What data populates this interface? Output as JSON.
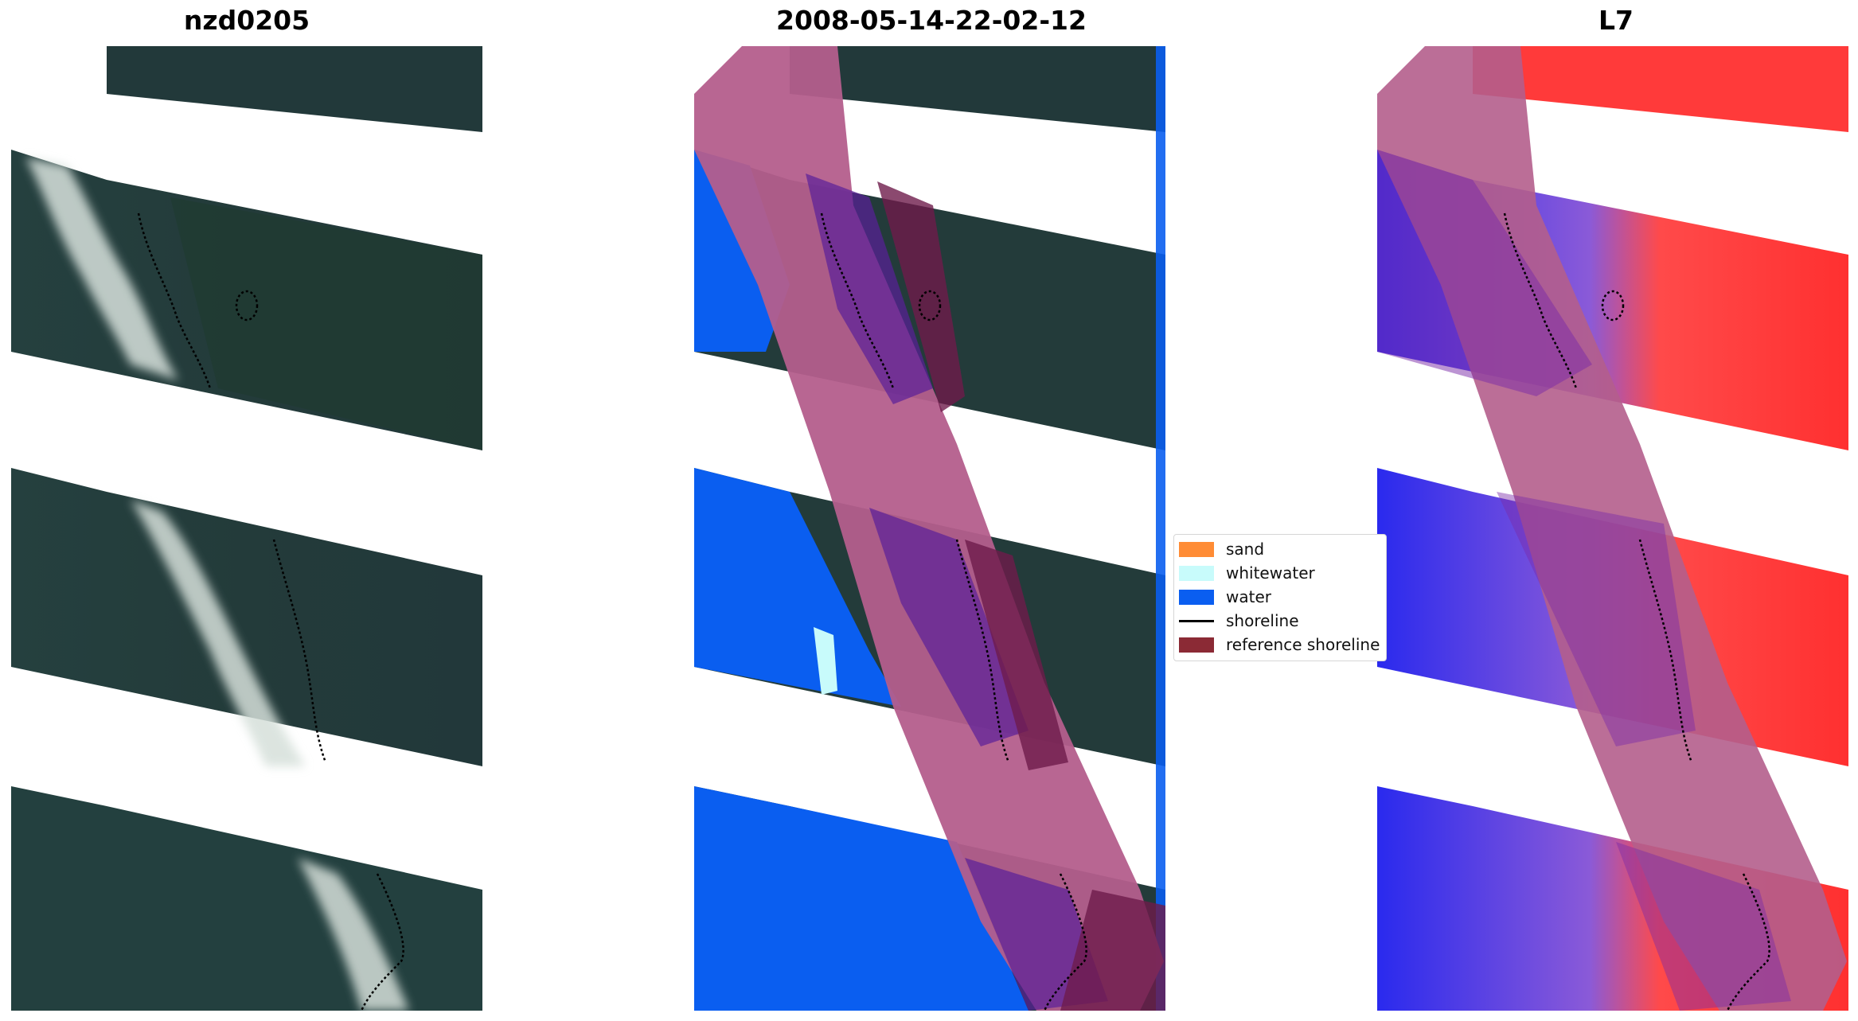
{
  "panels": [
    {
      "title": "nzd0205",
      "content": "RGB satellite image"
    },
    {
      "title": "2008-05-14-22-02-12",
      "content": "classified image"
    },
    {
      "title": "L7",
      "content": "water index image"
    }
  ],
  "legend": {
    "items": [
      {
        "label": "sand",
        "color": "#ff8c35"
      },
      {
        "label": "whitewater",
        "color": "#c8fbfb"
      },
      {
        "label": "water",
        "color": "#0a5ef0"
      },
      {
        "label": "shoreline",
        "color": "#000000"
      },
      {
        "label": "reference shoreline",
        "color": "#8b2a35"
      }
    ]
  },
  "colors": {
    "land_dark": "#1f3635",
    "vegetation": "#2b4838",
    "surf_white": "#d8e2dd",
    "water_index_land": "#ff2a2a",
    "water_index_water": "#2020ee",
    "buffer_overlay": "#b45e8c"
  }
}
